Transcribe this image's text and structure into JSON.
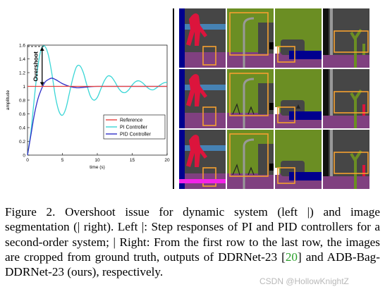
{
  "chart_data": {
    "type": "line",
    "xlabel": "time (s)",
    "ylabel": "amplitude",
    "xlim": [
      0,
      20
    ],
    "ylim": [
      0,
      1.6
    ],
    "xticks": [
      0,
      5,
      10,
      15,
      20
    ],
    "yticks": [
      0,
      0.2,
      0.4,
      0.6,
      0.8,
      1,
      1.2,
      1.4,
      1.6
    ],
    "grid": false,
    "legend_position": "lower-right",
    "annotation": "Overshoot",
    "series": [
      {
        "name": "Reference",
        "color": "#e8423f",
        "x": [
          0,
          20
        ],
        "y": [
          1,
          1
        ]
      },
      {
        "name": "PI Controller",
        "color": "#3ad6d6",
        "x": [
          0,
          0.5,
          1,
          1.5,
          2,
          2.5,
          3,
          3.5,
          4,
          4.5,
          5,
          5.5,
          6,
          6.5,
          7,
          7.5,
          8,
          8.5,
          9,
          9.5,
          10,
          10.5,
          11,
          11.5,
          12,
          12.5,
          13,
          13.5,
          14,
          14.5,
          15,
          15.5,
          16,
          16.5,
          17,
          17.5,
          18,
          18.5,
          19,
          19.5,
          20
        ],
        "y": [
          0,
          0.35,
          0.85,
          1.3,
          1.55,
          1.58,
          1.45,
          1.18,
          0.85,
          0.64,
          0.58,
          0.68,
          0.9,
          1.12,
          1.28,
          1.3,
          1.2,
          1.02,
          0.86,
          0.8,
          0.84,
          0.96,
          1.08,
          1.15,
          1.14,
          1.07,
          0.98,
          0.92,
          0.91,
          0.95,
          1.02,
          1.07,
          1.08,
          1.05,
          1.0,
          0.96,
          0.95,
          0.98,
          1.02,
          1.05,
          1.06
        ]
      },
      {
        "name": "PID Controller",
        "color": "#2f2fc8",
        "x": [
          0,
          0.5,
          1,
          1.5,
          2,
          2.5,
          3,
          3.5,
          4,
          4.5,
          5,
          6,
          7,
          8,
          9,
          10,
          11,
          12,
          13,
          14,
          15,
          16,
          17,
          18,
          19,
          20
        ],
        "y": [
          0,
          0.3,
          0.6,
          0.82,
          0.96,
          1.06,
          1.1,
          1.12,
          1.1,
          1.07,
          1.04,
          1.0,
          0.98,
          0.985,
          0.995,
          1.0,
          1.0,
          1.0,
          1.0,
          1.0,
          1.0,
          1.0,
          1.0,
          1.0,
          1.0,
          1.0
        ]
      }
    ]
  },
  "caption": {
    "part1": "Figure 2.  Overshoot issue for dynamic system (left |) and image segmentation (| right). Left |: Step responses of PI and PID controllers for a second-order system; | Right: From the first row to the last row, the images are cropped from ground truth, outputs of DDRNet-23 [",
    "ref": "20",
    "part2": "] and ADB-Bag-DDRNet-23 (ours), respectively."
  },
  "watermark": "CSDN @HollowKnightZ",
  "segmentation_colors": {
    "road": "#804080",
    "sidewalk": "#f423e8",
    "vegetation": "#6b8e23",
    "building": "#464646",
    "pole": "#999999",
    "person": "#dc143c",
    "car": "#00008e",
    "sky": "#4682b4",
    "highlight_box": "#f5a030"
  }
}
